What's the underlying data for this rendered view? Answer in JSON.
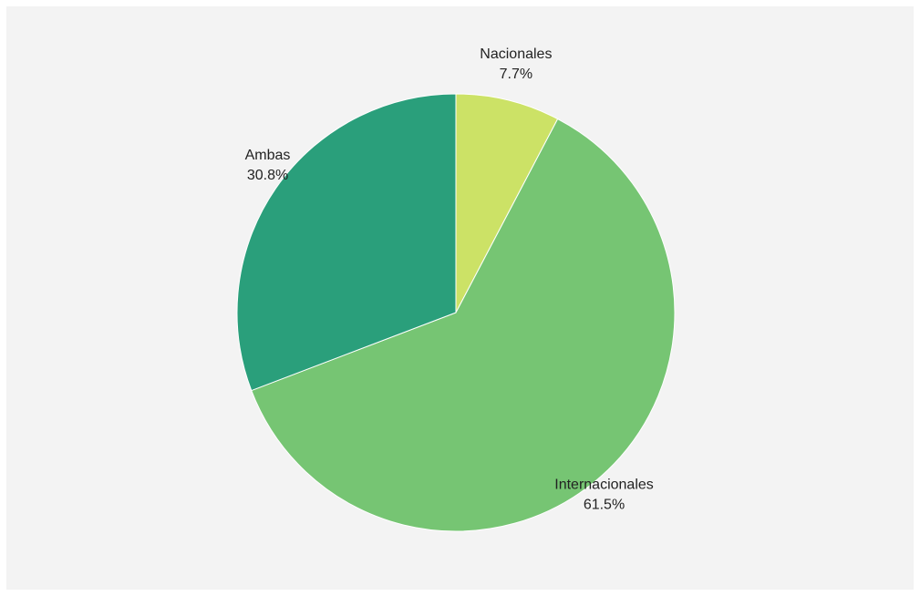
{
  "chart_data": {
    "type": "pie",
    "title": "",
    "start_angle_deg": 0,
    "direction": "clockwise",
    "slices": [
      {
        "label": "Nacionales",
        "value": 7.7,
        "value_label": "7.7%",
        "color": "#cce266"
      },
      {
        "label": "Internacionales",
        "value": 61.5,
        "value_label": "61.5%",
        "color": "#76c573"
      },
      {
        "label": "Ambas",
        "value": 30.8,
        "value_label": "30.8%",
        "color": "#2a9f7b"
      }
    ]
  },
  "colors": {
    "background": "#f3f3f3",
    "label_text": "#222222"
  }
}
